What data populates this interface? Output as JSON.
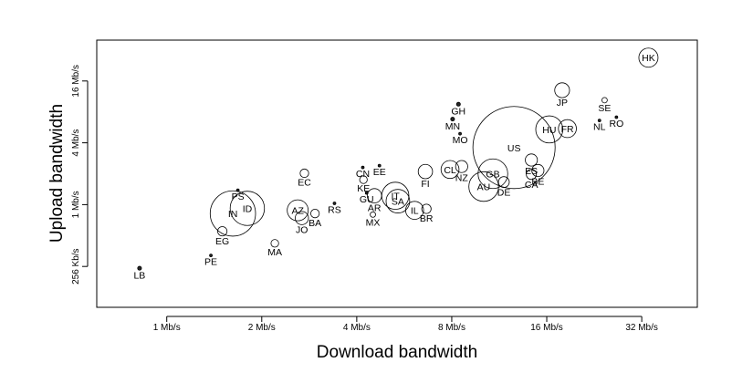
{
  "chart_data": {
    "type": "scatter",
    "title": "",
    "xlabel": "Download bandwidth",
    "ylabel": "Upload bandwidth",
    "x_scale": "log2",
    "y_scale": "log2",
    "x_unit": "Mb/s",
    "y_unit": "Mb/s",
    "xlim": [
      0.6,
      48
    ],
    "ylim": [
      0.1,
      40
    ],
    "x_ticks": [
      {
        "value": 1,
        "label": "1 Mb/s"
      },
      {
        "value": 2,
        "label": "2 Mb/s"
      },
      {
        "value": 4,
        "label": "4 Mb/s"
      },
      {
        "value": 8,
        "label": "8 Mb/s"
      },
      {
        "value": 16,
        "label": "16 Mb/s"
      },
      {
        "value": 32,
        "label": "32 Mb/s"
      }
    ],
    "y_ticks": [
      {
        "value": 0.25,
        "label": "256 Kb/s"
      },
      {
        "value": 1,
        "label": "1 Mb/s"
      },
      {
        "value": 4,
        "label": "4 Mb/s"
      },
      {
        "value": 16,
        "label": "16 Mb/s"
      }
    ],
    "grid": false,
    "legend": "none",
    "point_size_encoding": "circle area scales with a per-country weight",
    "points": [
      {
        "label": "LB",
        "x": 0.82,
        "y": 0.24,
        "size": 1
      },
      {
        "label": "PE",
        "x": 1.38,
        "y": 0.32,
        "size": 0.5
      },
      {
        "label": "EG",
        "x": 1.5,
        "y": 0.55,
        "size": 6
      },
      {
        "label": "MA",
        "x": 2.2,
        "y": 0.42,
        "size": 4
      },
      {
        "label": "PS",
        "x": 1.68,
        "y": 1.38,
        "size": 0.5
      },
      {
        "label": "IN",
        "x": 1.62,
        "y": 0.82,
        "size": 140
      },
      {
        "label": "ID",
        "x": 1.8,
        "y": 0.92,
        "size": 80
      },
      {
        "label": "AZ",
        "x": 2.6,
        "y": 0.88,
        "size": 30
      },
      {
        "label": "JO",
        "x": 2.68,
        "y": 0.74,
        "size": 12
      },
      {
        "label": "BA",
        "x": 2.95,
        "y": 0.82,
        "size": 5
      },
      {
        "label": "EC",
        "x": 2.73,
        "y": 2.02,
        "size": 5
      },
      {
        "label": "RS",
        "x": 3.4,
        "y": 1.03,
        "size": 0.5
      },
      {
        "label": "CN",
        "x": 4.18,
        "y": 2.3,
        "size": 0.5
      },
      {
        "label": "EE",
        "x": 4.72,
        "y": 2.4,
        "size": 0.5
      },
      {
        "label": "KE",
        "x": 4.2,
        "y": 1.75,
        "size": 4
      },
      {
        "label": "GU",
        "x": 4.3,
        "y": 1.3,
        "size": 0.5
      },
      {
        "label": "AR",
        "x": 4.55,
        "y": 1.22,
        "size": 14
      },
      {
        "label": "MX",
        "x": 4.5,
        "y": 0.8,
        "size": 2
      },
      {
        "label": "IT",
        "x": 5.3,
        "y": 1.22,
        "size": 50
      },
      {
        "label": "SA",
        "x": 5.4,
        "y": 1.08,
        "size": 38
      },
      {
        "label": "IL",
        "x": 6.1,
        "y": 0.88,
        "size": 22
      },
      {
        "label": "BR",
        "x": 6.65,
        "y": 0.91,
        "size": 6
      },
      {
        "label": "FI",
        "x": 6.6,
        "y": 2.1,
        "size": 14
      },
      {
        "label": "GH",
        "x": 8.4,
        "y": 9.5,
        "size": 1
      },
      {
        "label": "MN",
        "x": 8.05,
        "y": 6.8,
        "size": 1
      },
      {
        "label": "MO",
        "x": 8.5,
        "y": 4.9,
        "size": 0.5
      },
      {
        "label": "CL",
        "x": 7.9,
        "y": 2.2,
        "size": 22
      },
      {
        "label": "NZ",
        "x": 8.6,
        "y": 2.35,
        "size": 10
      },
      {
        "label": "AU",
        "x": 10.1,
        "y": 1.5,
        "size": 60
      },
      {
        "label": "GB",
        "x": 10.8,
        "y": 2.0,
        "size": 60
      },
      {
        "label": "DE",
        "x": 11.7,
        "y": 1.66,
        "size": 8
      },
      {
        "label": "US",
        "x": 12.6,
        "y": 3.6,
        "size": 460
      },
      {
        "label": "ES",
        "x": 14.3,
        "y": 2.72,
        "size": 10
      },
      {
        "label": "CA",
        "x": 14.3,
        "y": 1.97,
        "size": 7
      },
      {
        "label": "BE",
        "x": 15.0,
        "y": 2.15,
        "size": 10
      },
      {
        "label": "HU",
        "x": 16.3,
        "y": 5.4,
        "size": 50
      },
      {
        "label": "FR",
        "x": 18.6,
        "y": 5.5,
        "size": 22
      },
      {
        "label": "JP",
        "x": 17.9,
        "y": 13.0,
        "size": 15
      },
      {
        "label": "SE",
        "x": 24.4,
        "y": 10.4,
        "size": 2
      },
      {
        "label": "NL",
        "x": 23.5,
        "y": 6.6,
        "size": 0.5
      },
      {
        "label": "RO",
        "x": 26.6,
        "y": 7.1,
        "size": 0.5
      },
      {
        "label": "HK",
        "x": 33.6,
        "y": 27.0,
        "size": 25
      }
    ]
  }
}
